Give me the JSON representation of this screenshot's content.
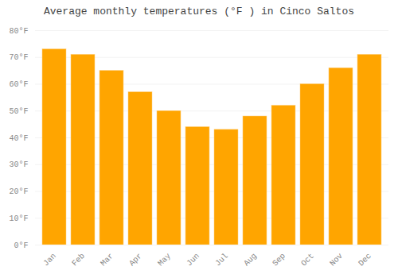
{
  "chart_data": {
    "type": "bar",
    "title": "Average monthly temperatures (°F ) in Cinco Saltos",
    "categories": [
      "Jan",
      "Feb",
      "Mar",
      "Apr",
      "May",
      "Jun",
      "Jul",
      "Aug",
      "Sep",
      "Oct",
      "Nov",
      "Dec"
    ],
    "values": [
      73,
      71,
      65,
      57,
      50,
      44,
      43,
      48,
      52,
      60,
      66,
      71
    ],
    "color": "#FFA500",
    "ylim": [
      0,
      80
    ],
    "yticks": [
      {
        "value": 0,
        "label": "0°F"
      },
      {
        "value": 10,
        "label": "10°F"
      },
      {
        "value": 20,
        "label": "20°F"
      },
      {
        "value": 30,
        "label": "30°F"
      },
      {
        "value": 40,
        "label": "40°F"
      },
      {
        "value": 50,
        "label": "50°F"
      },
      {
        "value": 60,
        "label": "60°F"
      },
      {
        "value": 70,
        "label": "70°F"
      },
      {
        "value": 80,
        "label": "80°F"
      }
    ],
    "grid": true
  }
}
